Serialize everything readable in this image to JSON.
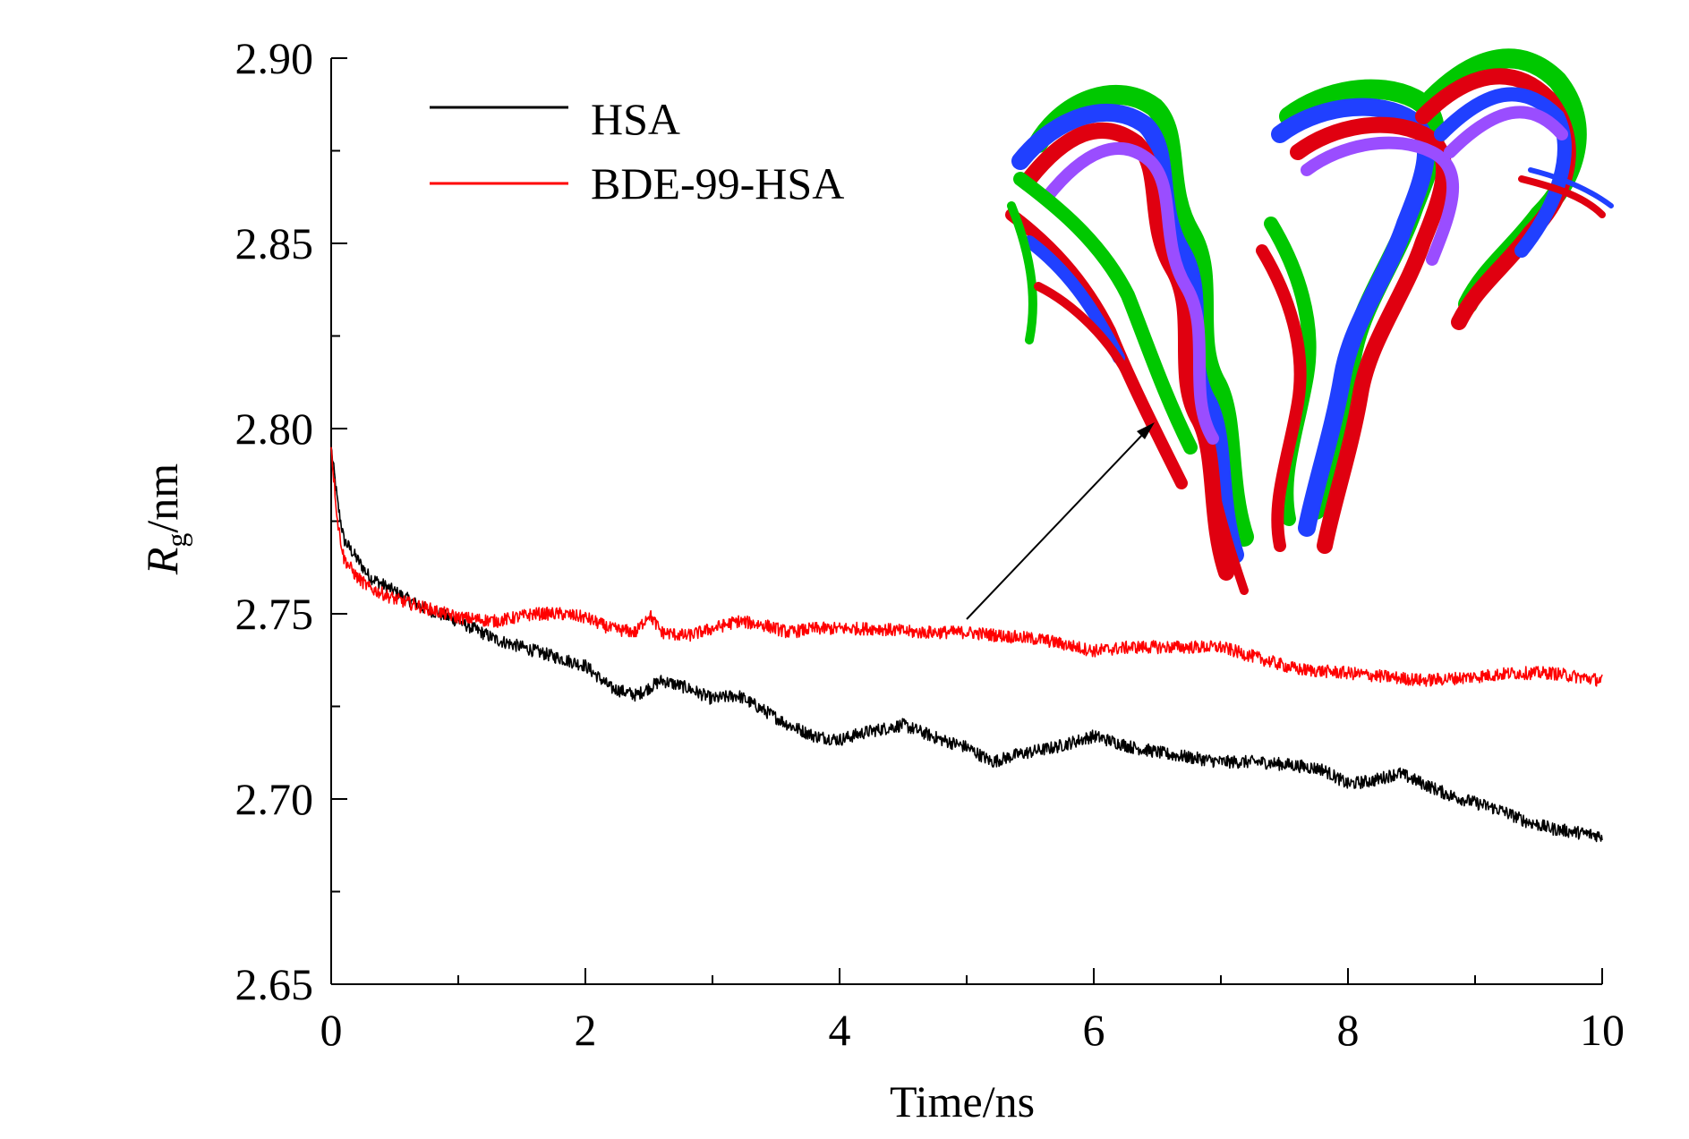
{
  "chart_data": {
    "type": "line",
    "xlabel": "Time/ns",
    "ylabel_main": "R",
    "ylabel_sub": "g",
    "ylabel_unit": "/nm",
    "xlim": [
      0,
      10
    ],
    "ylim": [
      2.65,
      2.9
    ],
    "xticks": [
      0,
      2,
      4,
      6,
      8,
      10
    ],
    "xtick_labels": [
      "0",
      "2",
      "4",
      "6",
      "8",
      "10"
    ],
    "yticks": [
      2.65,
      2.7,
      2.75,
      2.8,
      2.85,
      2.9
    ],
    "ytick_labels": [
      "2.65",
      "2.70",
      "2.75",
      "2.80",
      "2.85",
      "2.90"
    ],
    "legend_position": "top-left",
    "series": [
      {
        "name": "HSA",
        "color": "#000000",
        "x": [
          0,
          0.05,
          0.1,
          0.2,
          0.3,
          0.5,
          0.7,
          1.0,
          1.3,
          1.6,
          2.0,
          2.2,
          2.4,
          2.6,
          2.8,
          3.0,
          3.2,
          3.4,
          3.6,
          3.8,
          4.0,
          4.2,
          4.5,
          4.8,
          5.0,
          5.2,
          5.4,
          5.7,
          6.0,
          6.3,
          6.6,
          7.0,
          7.3,
          7.6,
          7.8,
          8.0,
          8.2,
          8.4,
          8.6,
          8.8,
          9.0,
          9.2,
          9.4,
          9.6,
          9.8,
          10.0
        ],
        "y": [
          2.795,
          2.78,
          2.77,
          2.765,
          2.76,
          2.756,
          2.752,
          2.748,
          2.743,
          2.74,
          2.736,
          2.73,
          2.728,
          2.732,
          2.73,
          2.727,
          2.728,
          2.724,
          2.72,
          2.717,
          2.716,
          2.718,
          2.72,
          2.716,
          2.714,
          2.71,
          2.712,
          2.714,
          2.717,
          2.714,
          2.712,
          2.71,
          2.71,
          2.709,
          2.708,
          2.704,
          2.705,
          2.707,
          2.704,
          2.701,
          2.699,
          2.697,
          2.694,
          2.692,
          2.691,
          2.69
        ]
      },
      {
        "name": "BDE-99-HSA",
        "color": "#ff0000",
        "x": [
          0,
          0.05,
          0.1,
          0.2,
          0.3,
          0.5,
          0.7,
          1.0,
          1.3,
          1.6,
          1.8,
          2.0,
          2.2,
          2.4,
          2.5,
          2.6,
          2.8,
          3.0,
          3.2,
          3.4,
          3.6,
          3.8,
          4.0,
          4.3,
          4.6,
          5.0,
          5.3,
          5.6,
          6.0,
          6.3,
          6.6,
          7.0,
          7.3,
          7.6,
          8.0,
          8.3,
          8.6,
          9.0,
          9.3,
          9.6,
          10.0
        ],
        "y": [
          2.795,
          2.775,
          2.765,
          2.76,
          2.757,
          2.754,
          2.752,
          2.749,
          2.748,
          2.75,
          2.75,
          2.749,
          2.746,
          2.745,
          2.75,
          2.745,
          2.744,
          2.746,
          2.748,
          2.747,
          2.745,
          2.746,
          2.746,
          2.746,
          2.745,
          2.745,
          2.744,
          2.743,
          2.74,
          2.741,
          2.741,
          2.741,
          2.738,
          2.735,
          2.734,
          2.733,
          2.732,
          2.733,
          2.734,
          2.734,
          2.732
        ]
      }
    ]
  }
}
